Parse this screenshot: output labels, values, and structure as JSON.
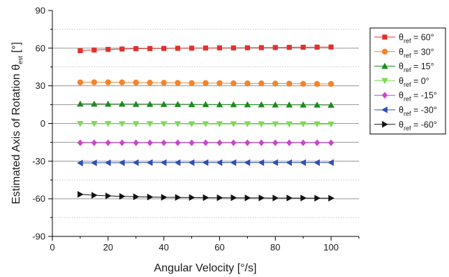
{
  "chart_data": {
    "type": "line",
    "title": "",
    "xlabel": "Angular Velocity [°/s]",
    "ylabel": {
      "main": "Estimated Axis of Rotation θ",
      "sub": "est",
      "suffix": " [°]"
    },
    "xlim": [
      0,
      110
    ],
    "ylim": [
      -90,
      90
    ],
    "x_ticks": [
      "0",
      "20",
      "40",
      "60",
      "80",
      "100"
    ],
    "y_ticks": [
      "-90",
      "-60",
      "-30",
      "0",
      "30",
      "60",
      "90"
    ],
    "legend_placement": "top-right outside",
    "reference_lines": [
      60,
      30,
      15,
      0,
      -15,
      -30,
      -60
    ],
    "grid": "dotted horizontal at 15° steps",
    "x": [
      10,
      15,
      20,
      25,
      30,
      35,
      40,
      45,
      50,
      55,
      60,
      65,
      70,
      75,
      80,
      85,
      90,
      95,
      100
    ],
    "series": [
      {
        "legend_prefix": "θ",
        "legend_sub": "ref",
        "legend_value": " = 60°",
        "marker": "square",
        "color": "#e0322d",
        "values": [
          58.0,
          58.5,
          59.0,
          59.3,
          59.6,
          59.7,
          59.8,
          59.9,
          60.0,
          60.1,
          60.2,
          60.2,
          60.3,
          60.4,
          60.5,
          60.6,
          60.7,
          60.8,
          60.9
        ]
      },
      {
        "legend_prefix": "θ",
        "legend_sub": "ref",
        "legend_value": " = 30°",
        "marker": "circle",
        "color": "#f5832a",
        "values": [
          32.7,
          32.8,
          32.8,
          32.7,
          32.6,
          32.5,
          32.4,
          32.3,
          32.2,
          32.2,
          32.1,
          32.0,
          31.9,
          31.9,
          31.8,
          31.7,
          31.6,
          31.5,
          31.5
        ]
      },
      {
        "legend_prefix": "θ",
        "legend_sub": "ref",
        "legend_value": " = 15°",
        "marker": "triangle-up",
        "color": "#1e8a1e",
        "values": [
          15.6,
          15.6,
          15.5,
          15.5,
          15.4,
          15.4,
          15.3,
          15.3,
          15.2,
          15.2,
          15.1,
          15.1,
          15.0,
          15.0,
          14.9,
          14.9,
          14.8,
          14.8,
          14.7
        ]
      },
      {
        "legend_prefix": "θ",
        "legend_sub": "ref",
        "legend_value": " = 0°",
        "marker": "triangle-down",
        "color": "#7ed957",
        "values": [
          -0.2,
          -0.2,
          -0.2,
          -0.3,
          -0.3,
          -0.3,
          -0.3,
          -0.3,
          -0.4,
          -0.4,
          -0.4,
          -0.4,
          -0.4,
          -0.5,
          -0.5,
          -0.5,
          -0.5,
          -0.5,
          -0.6
        ]
      },
      {
        "legend_prefix": "θ",
        "legend_sub": "ref",
        "legend_value": " = -15°",
        "marker": "diamond",
        "color": "#cc44cc",
        "values": [
          -15.4,
          -15.4,
          -15.4,
          -15.4,
          -15.4,
          -15.4,
          -15.4,
          -15.4,
          -15.4,
          -15.4,
          -15.4,
          -15.4,
          -15.4,
          -15.4,
          -15.4,
          -15.4,
          -15.4,
          -15.4,
          -15.4
        ]
      },
      {
        "legend_prefix": "θ",
        "legend_sub": "ref",
        "legend_value": " = -30°",
        "marker": "triangle-left",
        "color": "#2f4fb5",
        "values": [
          -31.5,
          -31.4,
          -31.3,
          -31.3,
          -31.2,
          -31.2,
          -31.2,
          -31.2,
          -31.2,
          -31.2,
          -31.2,
          -31.2,
          -31.2,
          -31.2,
          -31.2,
          -31.2,
          -31.2,
          -31.2,
          -31.2
        ]
      },
      {
        "legend_prefix": "θ",
        "legend_sub": "ref",
        "legend_value": " = -60°",
        "marker": "triangle-right",
        "color": "#111111",
        "values": [
          -56.5,
          -57.2,
          -57.7,
          -58.1,
          -58.4,
          -58.6,
          -58.8,
          -58.9,
          -59.0,
          -59.1,
          -59.2,
          -59.2,
          -59.3,
          -59.3,
          -59.4,
          -59.4,
          -59.4,
          -59.5,
          -59.5
        ]
      }
    ]
  }
}
